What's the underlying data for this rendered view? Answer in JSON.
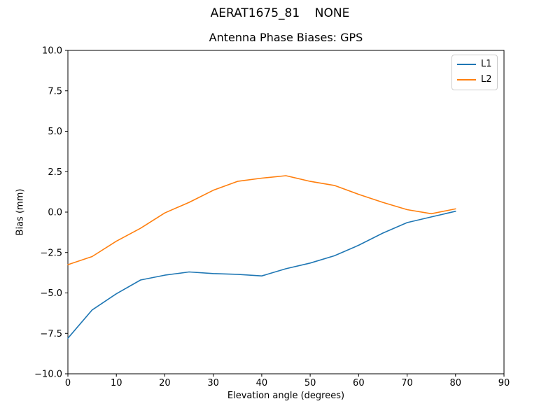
{
  "suptitle": "AERAT1675_81    NONE",
  "chart_data": {
    "type": "line",
    "title": "Antenna Phase Biases: GPS",
    "xlabel": "Elevation angle (degrees)",
    "ylabel": "Bias (mm)",
    "xlim": [
      0,
      90
    ],
    "ylim": [
      -10.0,
      10.0
    ],
    "grid": false,
    "legend_position": "upper right",
    "x_ticks": [
      0,
      10,
      20,
      30,
      40,
      50,
      60,
      70,
      80,
      90
    ],
    "x_tick_labels": [
      "0",
      "10",
      "20",
      "30",
      "40",
      "50",
      "60",
      "70",
      "80",
      "90"
    ],
    "y_ticks": [
      -10.0,
      -7.5,
      -5.0,
      -2.5,
      0.0,
      2.5,
      5.0,
      7.5,
      10.0
    ],
    "y_tick_labels": [
      "−10.0",
      "−7.5",
      "−5.0",
      "−2.5",
      "0.0",
      "2.5",
      "5.0",
      "7.5",
      "10.0"
    ],
    "x": [
      0,
      5,
      10,
      15,
      20,
      25,
      30,
      35,
      40,
      45,
      50,
      55,
      60,
      65,
      70,
      75,
      80
    ],
    "series": [
      {
        "name": "L1",
        "color": "#1f77b4",
        "values": [
          -7.8,
          -6.05,
          -5.05,
          -4.2,
          -3.9,
          -3.7,
          -3.8,
          -3.85,
          -3.95,
          -3.5,
          -3.15,
          -2.7,
          -2.05,
          -1.3,
          -0.65,
          -0.3,
          0.05
        ]
      },
      {
        "name": "L2",
        "color": "#ff7f0e",
        "values": [
          -3.25,
          -2.75,
          -1.8,
          -1.0,
          -0.05,
          0.6,
          1.35,
          1.9,
          2.1,
          2.25,
          1.9,
          1.65,
          1.1,
          0.6,
          0.15,
          -0.1,
          0.2
        ]
      }
    ]
  }
}
